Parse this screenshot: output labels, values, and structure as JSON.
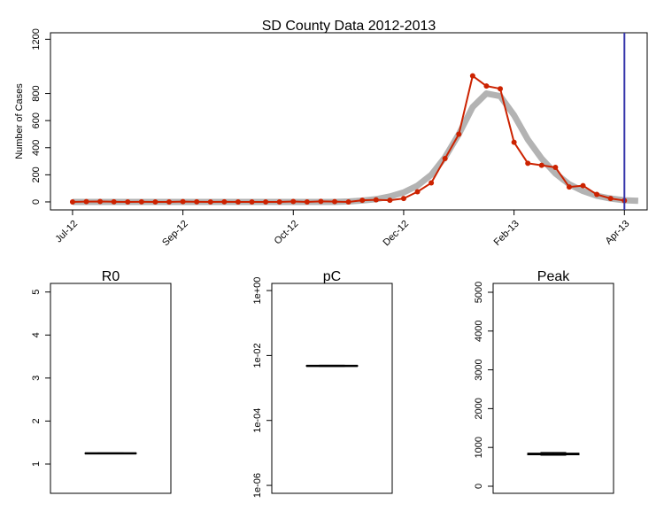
{
  "chart_data": [
    {
      "type": "line",
      "title": "SD County Data 2012-2013",
      "ylabel": "Number of Cases",
      "x": [
        0,
        1,
        2,
        3,
        4,
        5,
        6,
        7,
        8,
        9,
        10,
        11,
        12,
        13,
        14,
        15,
        16,
        17,
        18,
        19,
        20,
        21,
        22,
        23,
        24,
        25,
        26,
        27,
        28,
        29,
        30,
        31,
        32,
        33,
        34,
        35,
        36,
        37,
        38,
        39,
        40,
        41
      ],
      "series": [
        {
          "color": "#b3b3b3",
          "values": [
            0,
            0,
            0,
            0,
            0,
            0,
            0,
            0,
            0,
            0,
            0,
            0,
            0,
            0,
            0,
            0,
            0,
            0,
            0,
            0,
            3,
            10,
            20,
            40,
            70,
            120,
            200,
            330,
            500,
            700,
            800,
            780,
            640,
            460,
            320,
            210,
            130,
            80,
            45,
            25,
            12,
            8
          ]
        },
        {
          "color": "#cc2200",
          "values": [
            0,
            2,
            3,
            1,
            0,
            1,
            0,
            0,
            2,
            1,
            0,
            1,
            0,
            0,
            0,
            0,
            3,
            0,
            4,
            2,
            0,
            12,
            15,
            12,
            25,
            75,
            140,
            320,
            500,
            930,
            855,
            835,
            440,
            285,
            270,
            255,
            110,
            120,
            55,
            25,
            10,
            null
          ]
        }
      ],
      "xlim": [
        -1.6,
        41.65
      ],
      "xticks": [
        {
          "value": 0,
          "label": "Jul-12"
        },
        {
          "value": 8,
          "label": "Sep-12"
        },
        {
          "value": 16,
          "label": "Oct-12"
        },
        {
          "value": 24,
          "label": "Dec-12"
        },
        {
          "value": 32,
          "label": "Feb-13"
        },
        {
          "value": 40,
          "label": "Apr-13"
        }
      ],
      "ylim": [
        -59,
        1248
      ],
      "yticks": [
        0,
        200,
        400,
        600,
        800,
        1200
      ],
      "vline": 40,
      "vline_color": "#3333aa"
    },
    {
      "type": "box",
      "title": "R0",
      "whisker_low": 1.24,
      "q1": 1.245,
      "median": 1.25,
      "q3": 1.255,
      "whisker_high": 1.26,
      "ylim": [
        0.32,
        5.2
      ],
      "yticks": [
        1,
        2,
        3,
        4,
        5
      ]
    },
    {
      "type": "box",
      "title": "pC",
      "log_scale": true,
      "whisker_low": 0.0046,
      "q1": 0.0047,
      "median": 0.0048,
      "q3": 0.0049,
      "whisker_high": 0.005,
      "ylim": [
        5.7e-07,
        1.66
      ],
      "yticks": [
        {
          "value": 1e-06,
          "label": "1e-06"
        },
        {
          "value": 0.0001,
          "label": "1e-04"
        },
        {
          "value": 0.01,
          "label": "1e-02"
        },
        {
          "value": 1,
          "label": "1e+00"
        }
      ]
    },
    {
      "type": "box",
      "title": "Peak",
      "whisker_low": 800,
      "q1": 810,
      "median": 833,
      "q3": 850,
      "whisker_high": 870,
      "ylim": [
        -183,
        5228
      ],
      "yticks": [
        0,
        1000,
        2000,
        3000,
        4000,
        5000
      ]
    }
  ]
}
